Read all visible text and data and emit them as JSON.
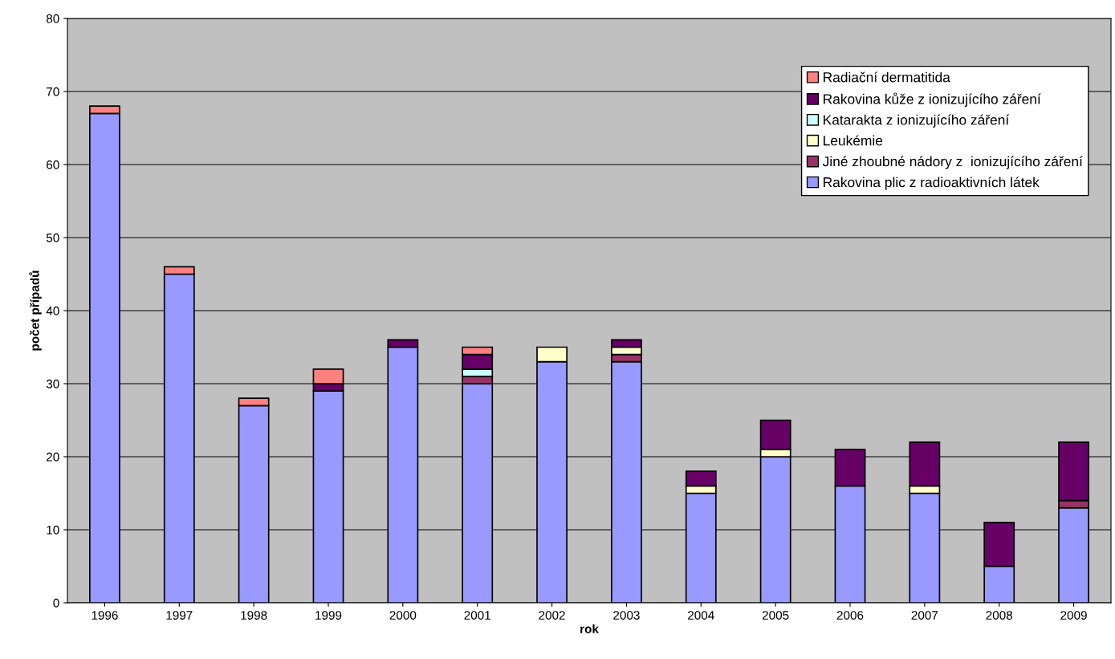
{
  "chart_data": {
    "type": "bar",
    "stacked": true,
    "xlabel": "rok",
    "ylabel": "počet případů",
    "categories": [
      "1996",
      "1997",
      "1998",
      "1999",
      "2000",
      "2001",
      "2002",
      "2003",
      "2004",
      "2005",
      "2006",
      "2007",
      "2008",
      "2009"
    ],
    "series": [
      {
        "name": "Rakovina plic z radioaktivních látek",
        "color": "#9999ff",
        "values": [
          67,
          45,
          27,
          29,
          35,
          30,
          33,
          33,
          15,
          20,
          16,
          15,
          5,
          13
        ]
      },
      {
        "name": "Jiné zhoubné nádory z  ionizujícího záření",
        "color": "#993366",
        "values": [
          null,
          null,
          null,
          null,
          null,
          1,
          null,
          1,
          null,
          null,
          null,
          null,
          null,
          1
        ]
      },
      {
        "name": "Leukémie",
        "color": "#ffffcc",
        "values": [
          null,
          null,
          null,
          null,
          null,
          null,
          2,
          1,
          1,
          1,
          null,
          1,
          null,
          null
        ]
      },
      {
        "name": "Katarakta z ionizujícího záření",
        "color": "#ccffff",
        "values": [
          null,
          null,
          null,
          null,
          null,
          1,
          null,
          null,
          null,
          null,
          null,
          null,
          null,
          null
        ]
      },
      {
        "name": "Rakovina kůže z ionizujícího záření",
        "color": "#660066",
        "values": [
          null,
          null,
          null,
          1,
          1,
          2,
          null,
          1,
          2,
          4,
          5,
          6,
          6,
          8
        ]
      },
      {
        "name": "Radiační dermatitida",
        "color": "#ff8080",
        "values": [
          1,
          1,
          1,
          2,
          null,
          1,
          null,
          null,
          null,
          null,
          null,
          null,
          null,
          null
        ]
      }
    ],
    "ylim": [
      0,
      80
    ],
    "yticks": [
      0,
      10,
      20,
      30,
      40,
      50,
      60,
      70,
      80
    ],
    "grid": "y",
    "legend": "top right"
  }
}
